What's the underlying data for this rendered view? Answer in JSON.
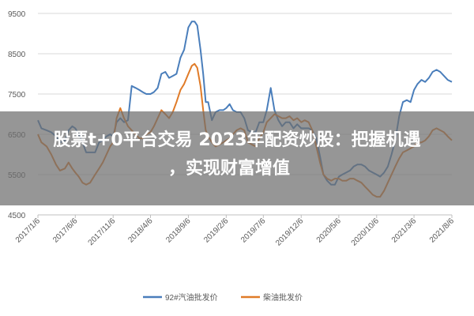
{
  "overlay": {
    "title_line1": "股票t+0平台交易 2023年配资炒股：把握机遇",
    "title_line2": "，实现财富增值"
  },
  "chart_data": {
    "type": "line",
    "ylim": [
      4500,
      9500
    ],
    "yticks": [
      "9500",
      "8500",
      "7500",
      "6500",
      "5500",
      "4500"
    ],
    "ytick_values": [
      9500,
      8500,
      7500,
      6500,
      5500,
      4500
    ],
    "xlim": [
      "2017-01-06",
      "2021-08-06"
    ],
    "xticks": [
      "2017/1/6",
      "2017/6/6",
      "2017/11/6",
      "2018/4/6",
      "2018/9/6",
      "2019/2/6",
      "2019/7/6",
      "2019/12/6",
      "2020/5/6",
      "2020/10/6",
      "2021/3/6",
      "2021/8/6"
    ],
    "xtick_dates": [
      "2017-01-06",
      "2017-06-06",
      "2017-11-06",
      "2018-04-06",
      "2018-09-06",
      "2019-02-06",
      "2019-07-06",
      "2019-12-06",
      "2020-05-06",
      "2020-10-06",
      "2021-03-06",
      "2021-08-06"
    ],
    "grid": true,
    "legend_position": "bottom",
    "series": [
      {
        "name": "92#汽油批发价",
        "color": "#4a7ebb",
        "points": [
          [
            "2017-01-06",
            6850
          ],
          [
            "2017-01-20",
            6650
          ],
          [
            "2017-02-10",
            6600
          ],
          [
            "2017-03-01",
            6550
          ],
          [
            "2017-03-20",
            6450
          ],
          [
            "2017-04-05",
            6300
          ],
          [
            "2017-04-25",
            6350
          ],
          [
            "2017-05-10",
            6600
          ],
          [
            "2017-05-25",
            6700
          ],
          [
            "2017-06-06",
            6650
          ],
          [
            "2017-06-20",
            6500
          ],
          [
            "2017-07-05",
            6300
          ],
          [
            "2017-07-20",
            6050
          ],
          [
            "2017-08-05",
            6050
          ],
          [
            "2017-08-25",
            6050
          ],
          [
            "2017-09-10",
            6300
          ],
          [
            "2017-09-25",
            6350
          ],
          [
            "2017-10-10",
            6450
          ],
          [
            "2017-10-25",
            6500
          ],
          [
            "2017-11-06",
            6450
          ],
          [
            "2017-11-20",
            6800
          ],
          [
            "2017-12-05",
            6900
          ],
          [
            "2017-12-20",
            6800
          ],
          [
            "2018-01-05",
            6850
          ],
          [
            "2018-01-20",
            7700
          ],
          [
            "2018-02-05",
            7650
          ],
          [
            "2018-02-20",
            7600
          ],
          [
            "2018-03-05",
            7550
          ],
          [
            "2018-03-20",
            7500
          ],
          [
            "2018-04-06",
            7500
          ],
          [
            "2018-04-20",
            7550
          ],
          [
            "2018-05-05",
            7650
          ],
          [
            "2018-05-20",
            8000
          ],
          [
            "2018-06-05",
            8050
          ],
          [
            "2018-06-20",
            7900
          ],
          [
            "2018-07-05",
            7950
          ],
          [
            "2018-07-20",
            8000
          ],
          [
            "2018-08-05",
            8400
          ],
          [
            "2018-08-20",
            8600
          ],
          [
            "2018-09-06",
            9150
          ],
          [
            "2018-09-20",
            9300
          ],
          [
            "2018-10-01",
            9300
          ],
          [
            "2018-10-12",
            9200
          ],
          [
            "2018-10-25",
            8600
          ],
          [
            "2018-11-05",
            8000
          ],
          [
            "2018-11-15",
            7300
          ],
          [
            "2018-11-25",
            7300
          ],
          [
            "2018-12-10",
            6850
          ],
          [
            "2018-12-25",
            7050
          ],
          [
            "2019-01-10",
            7100
          ],
          [
            "2019-01-25",
            7100
          ],
          [
            "2019-02-06",
            7150
          ],
          [
            "2019-02-20",
            7250
          ],
          [
            "2019-03-05",
            7100
          ],
          [
            "2019-03-20",
            7050
          ],
          [
            "2019-04-05",
            7050
          ],
          [
            "2019-04-20",
            6900
          ],
          [
            "2019-05-05",
            6600
          ],
          [
            "2019-05-20",
            6550
          ],
          [
            "2019-06-05",
            6550
          ],
          [
            "2019-06-20",
            6800
          ],
          [
            "2019-07-06",
            6800
          ],
          [
            "2019-07-20",
            7100
          ],
          [
            "2019-08-05",
            7650
          ],
          [
            "2019-08-20",
            7100
          ],
          [
            "2019-09-05",
            6850
          ],
          [
            "2019-09-20",
            6700
          ],
          [
            "2019-10-05",
            6800
          ],
          [
            "2019-10-20",
            6800
          ],
          [
            "2019-11-05",
            6650
          ],
          [
            "2019-11-20",
            6750
          ],
          [
            "2019-12-06",
            6650
          ],
          [
            "2019-12-20",
            6650
          ],
          [
            "2020-01-05",
            6650
          ],
          [
            "2020-01-20",
            6600
          ],
          [
            "2020-02-05",
            6400
          ],
          [
            "2020-02-20",
            5950
          ],
          [
            "2020-03-05",
            5500
          ],
          [
            "2020-03-20",
            5350
          ],
          [
            "2020-04-05",
            5250
          ],
          [
            "2020-04-20",
            5250
          ],
          [
            "2020-05-06",
            5450
          ],
          [
            "2020-05-20",
            5500
          ],
          [
            "2020-06-05",
            5550
          ],
          [
            "2020-06-20",
            5600
          ],
          [
            "2020-07-05",
            5700
          ],
          [
            "2020-07-20",
            5750
          ],
          [
            "2020-08-05",
            5750
          ],
          [
            "2020-08-20",
            5700
          ],
          [
            "2020-09-05",
            5600
          ],
          [
            "2020-09-20",
            5550
          ],
          [
            "2020-10-06",
            5500
          ],
          [
            "2020-10-20",
            5450
          ],
          [
            "2020-11-05",
            5550
          ],
          [
            "2020-11-20",
            5700
          ],
          [
            "2020-12-05",
            6000
          ],
          [
            "2020-12-20",
            6350
          ],
          [
            "2021-01-05",
            6950
          ],
          [
            "2021-01-20",
            7300
          ],
          [
            "2021-02-05",
            7350
          ],
          [
            "2021-02-20",
            7300
          ],
          [
            "2021-03-06",
            7600
          ],
          [
            "2021-03-20",
            7750
          ],
          [
            "2021-04-05",
            7850
          ],
          [
            "2021-04-20",
            7800
          ],
          [
            "2021-05-05",
            7900
          ],
          [
            "2021-05-20",
            8050
          ],
          [
            "2021-06-05",
            8100
          ],
          [
            "2021-06-20",
            8050
          ],
          [
            "2021-07-05",
            7950
          ],
          [
            "2021-07-20",
            7850
          ],
          [
            "2021-08-06",
            7800
          ]
        ]
      },
      {
        "name": "柴油批发价",
        "color": "#e07b28",
        "points": [
          [
            "2017-01-06",
            6500
          ],
          [
            "2017-01-20",
            6300
          ],
          [
            "2017-02-10",
            6200
          ],
          [
            "2017-03-01",
            6000
          ],
          [
            "2017-03-20",
            5750
          ],
          [
            "2017-04-05",
            5600
          ],
          [
            "2017-04-25",
            5650
          ],
          [
            "2017-05-10",
            5800
          ],
          [
            "2017-05-25",
            5650
          ],
          [
            "2017-06-06",
            5550
          ],
          [
            "2017-06-20",
            5450
          ],
          [
            "2017-07-05",
            5300
          ],
          [
            "2017-07-20",
            5250
          ],
          [
            "2017-08-05",
            5300
          ],
          [
            "2017-08-25",
            5500
          ],
          [
            "2017-09-10",
            5650
          ],
          [
            "2017-09-25",
            5800
          ],
          [
            "2017-10-10",
            6000
          ],
          [
            "2017-10-25",
            6200
          ],
          [
            "2017-11-06",
            6300
          ],
          [
            "2017-11-20",
            6900
          ],
          [
            "2017-12-05",
            7150
          ],
          [
            "2017-12-20",
            6900
          ],
          [
            "2018-01-05",
            6700
          ],
          [
            "2018-01-20",
            6600
          ],
          [
            "2018-02-05",
            6500
          ],
          [
            "2018-02-20",
            6400
          ],
          [
            "2018-03-05",
            6400
          ],
          [
            "2018-03-20",
            6500
          ],
          [
            "2018-04-06",
            6550
          ],
          [
            "2018-04-20",
            6700
          ],
          [
            "2018-05-05",
            6900
          ],
          [
            "2018-05-20",
            7100
          ],
          [
            "2018-06-05",
            7000
          ],
          [
            "2018-06-20",
            6900
          ],
          [
            "2018-07-05",
            7050
          ],
          [
            "2018-07-20",
            7300
          ],
          [
            "2018-08-05",
            7600
          ],
          [
            "2018-08-20",
            7750
          ],
          [
            "2018-09-06",
            8000
          ],
          [
            "2018-09-20",
            8200
          ],
          [
            "2018-10-01",
            8250
          ],
          [
            "2018-10-12",
            8150
          ],
          [
            "2018-10-25",
            7700
          ],
          [
            "2018-11-05",
            7100
          ],
          [
            "2018-11-15",
            6600
          ],
          [
            "2018-11-25",
            6450
          ],
          [
            "2018-12-10",
            6300
          ],
          [
            "2018-12-25",
            6200
          ],
          [
            "2019-01-10",
            6250
          ],
          [
            "2019-01-25",
            6300
          ],
          [
            "2019-02-06",
            6350
          ],
          [
            "2019-02-20",
            6400
          ],
          [
            "2019-03-05",
            6500
          ],
          [
            "2019-03-20",
            6600
          ],
          [
            "2019-04-05",
            6650
          ],
          [
            "2019-04-20",
            6600
          ],
          [
            "2019-05-05",
            6300
          ],
          [
            "2019-05-20",
            6250
          ],
          [
            "2019-06-05",
            6200
          ],
          [
            "2019-06-20",
            6400
          ],
          [
            "2019-07-06",
            6550
          ],
          [
            "2019-07-20",
            6800
          ],
          [
            "2019-08-05",
            6900
          ],
          [
            "2019-08-20",
            7000
          ],
          [
            "2019-09-05",
            6950
          ],
          [
            "2019-09-20",
            6900
          ],
          [
            "2019-10-05",
            6900
          ],
          [
            "2019-10-20",
            6950
          ],
          [
            "2019-11-05",
            6850
          ],
          [
            "2019-11-20",
            6900
          ],
          [
            "2019-12-06",
            6800
          ],
          [
            "2019-12-20",
            6850
          ],
          [
            "2020-01-05",
            6800
          ],
          [
            "2020-01-20",
            6600
          ],
          [
            "2020-02-05",
            6200
          ],
          [
            "2020-02-20",
            5800
          ],
          [
            "2020-03-05",
            5500
          ],
          [
            "2020-03-20",
            5400
          ],
          [
            "2020-04-05",
            5350
          ],
          [
            "2020-04-20",
            5400
          ],
          [
            "2020-05-06",
            5400
          ],
          [
            "2020-05-20",
            5350
          ],
          [
            "2020-06-05",
            5350
          ],
          [
            "2020-06-20",
            5400
          ],
          [
            "2020-07-05",
            5400
          ],
          [
            "2020-07-20",
            5350
          ],
          [
            "2020-08-05",
            5300
          ],
          [
            "2020-08-20",
            5200
          ],
          [
            "2020-09-05",
            5100
          ],
          [
            "2020-09-20",
            5000
          ],
          [
            "2020-10-06",
            4950
          ],
          [
            "2020-10-20",
            4950
          ],
          [
            "2020-11-05",
            5100
          ],
          [
            "2020-11-20",
            5300
          ],
          [
            "2020-12-05",
            5500
          ],
          [
            "2020-12-20",
            5700
          ],
          [
            "2021-01-05",
            5900
          ],
          [
            "2021-01-20",
            6050
          ],
          [
            "2021-02-05",
            6100
          ],
          [
            "2021-02-20",
            6150
          ],
          [
            "2021-03-06",
            6200
          ],
          [
            "2021-03-20",
            6300
          ],
          [
            "2021-04-05",
            6300
          ],
          [
            "2021-04-20",
            6350
          ],
          [
            "2021-05-05",
            6450
          ],
          [
            "2021-05-20",
            6600
          ],
          [
            "2021-06-05",
            6650
          ],
          [
            "2021-06-20",
            6600
          ],
          [
            "2021-07-05",
            6550
          ],
          [
            "2021-07-20",
            6450
          ],
          [
            "2021-08-06",
            6350
          ]
        ]
      }
    ]
  }
}
